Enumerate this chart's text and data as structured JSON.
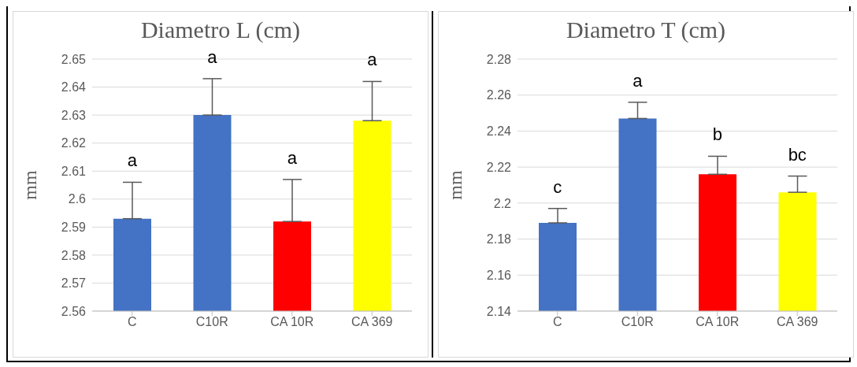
{
  "chart_data": [
    {
      "type": "bar",
      "title": "Diametro L (cm)",
      "ylabel": "mm",
      "categories": [
        "C",
        "C10R",
        "CA 10R",
        "CA 369"
      ],
      "values": [
        2.593,
        2.63,
        2.592,
        2.628
      ],
      "colors": [
        "#4472c4",
        "#4472c4",
        "#ff0000",
        "#ffff00"
      ],
      "errors": [
        [
          2.593,
          2.606
        ],
        [
          2.63,
          2.643
        ],
        [
          2.592,
          2.607
        ],
        [
          2.628,
          2.642
        ]
      ],
      "ylim": [
        2.56,
        2.65
      ],
      "yticks": [
        2.56,
        2.57,
        2.58,
        2.59,
        2.6,
        2.61,
        2.62,
        2.63,
        2.64,
        2.65
      ],
      "grid": "y",
      "annotations": [
        "a",
        "a",
        "a",
        "a"
      ]
    },
    {
      "type": "bar",
      "title": "Diametro T (cm)",
      "ylabel": "mm",
      "categories": [
        "C",
        "C10R",
        "CA 10R",
        "CA 369"
      ],
      "values": [
        2.189,
        2.247,
        2.216,
        2.206
      ],
      "colors": [
        "#4472c4",
        "#4472c4",
        "#ff0000",
        "#ffff00"
      ],
      "errors": [
        [
          2.189,
          2.197
        ],
        [
          2.247,
          2.256
        ],
        [
          2.216,
          2.226
        ],
        [
          2.206,
          2.215
        ]
      ],
      "ylim": [
        2.14,
        2.28
      ],
      "yticks": [
        2.14,
        2.16,
        2.18,
        2.2,
        2.22,
        2.24,
        2.26,
        2.28
      ],
      "grid": "y",
      "annotations": [
        "c",
        "a",
        "b",
        "bc"
      ]
    }
  ]
}
